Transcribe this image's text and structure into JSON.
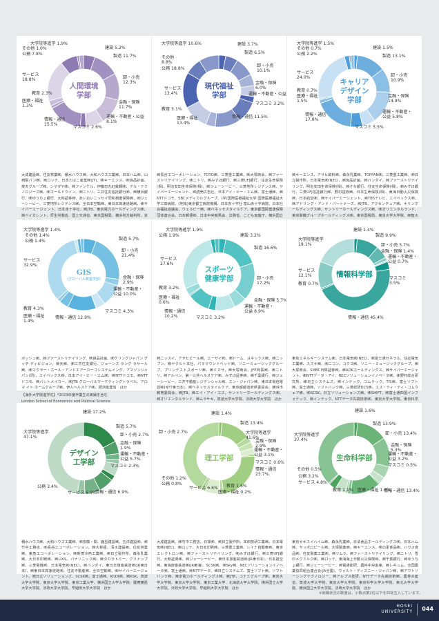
{
  "cards": [
    {
      "name": "人間環境\n学部",
      "sub": "",
      "color": "#8e7bb3",
      "labels": [
        "大学院等進学 1.9%",
        "その他 1.0%",
        "公務 7.8%",
        "建設 5.2%",
        "製造 11.7%",
        "サービス\n18.8%",
        "卸・小売\n12.3%",
        "教育 2.3%",
        "医療・福祉\n1.3%",
        "金融・保険\n11.7%",
        "運輸・不動産・公益\n8.1%",
        "情報・通信\n15.5%",
        "マスコミ 2.6%"
      ],
      "companies": "大成建設㈱、住友林業㈱、積水ハウス㈱、大和ハウス工業㈱、日本ハム㈱、山崎製パン㈱、㈱ロッテ、日本たばこ産業㈱(JT)、㈱キーエンス、㈱良品計画、楽天グループ㈱、シマダヤ㈱、㈱ファンケル、伊藤忠丸紅鉄鋼㈱、デル・テクノロジーズ㈱、㈱ゴールドウイン、㈱ニトリ、三井住友信託銀行㈱、㈱横浜銀行、㈱ゆうちょ銀行、大和証券㈱、あいおいニッセイ同和損害保険㈱、㈱ジェーシービー、三菱地所レジデンス㈱、全日本空輸㈱、東日本高速道路㈱、㈱サイバーエージェント、日本赤十字社、㈱JTB、東京電力ホールディングス㈱、㈱ベイカレント、厚生労働省、国土交通省、東京国税局、横浜地方裁判所、京都大学大学院、中央大学大学院、法政大学大学院　ほか",
      "extra": ""
    },
    {
      "name": "現代福祉\n学部",
      "sub": "",
      "color": "#4b63b0",
      "labels": [
        "大学院等進学 10.6%",
        "建設 3.7%",
        "その他\n8.8%",
        "製造 6.5%",
        "公務 18.8%",
        "卸・小売\n10.1%",
        "サービス\n13.4%",
        "金融・保険\n6.0%",
        "運輸・不動産・公益 6.0%",
        "教育 5.1%",
        "マスコミ 3.2%",
        "医療・福祉\n13.4%",
        "情報・通信 11.5%"
      ],
      "companies": "㈱長谷工コーポレーション、TOTO㈱、三菱重工業㈱、㈱大塚商会、㈱ファーストリテイリング、㈱ニトリ、㈱みずほ銀行、㈱三菱UFJ銀行、住友生命保険(相)、明治安田生命保険(相)、㈱ジェーシービー、三菱地所レジデンス㈱、サイバーエージェント、㈱読売広告社、日本アイ・ビー・エム㈱、富士通㈱、㈱NTTドコモ、SBCメディカルグループ、(学)国際医療福祉大学 国際医療福祉大学三田病院、(地独)東京都立病院機構、日本赤十字社 富山赤十字病院、日本社会福祉協議会、ウェルビー㈱、㈱ベネッセスタイルケア、東京都国民健康保険団体連合会、日本郵便㈱、日本中央競馬会、法務省、こども家庭庁、横浜国立大学大学院、上智大学大学院、法政大学大学院　ほか",
      "extra": ""
    },
    {
      "name": "キャリア\nデザイン\n学部",
      "sub": "",
      "color": "#4f9ed9",
      "labels": [
        "大学院等進学 1.5%",
        "その他 0.7%",
        "公務 2.2%",
        "建設 1.5%",
        "製造 13.1%",
        "サービス\n24.0%",
        "卸・小売\n10.9%",
        "教育 0.7%",
        "医療・福祉\n1.5%",
        "金融・保険\n14.9%",
        "運輸・不動産・\n公益 5.8%",
        "情報・通信\n17.8%",
        "マスコミ 5.5%"
      ],
      "companies": "㈱キーエンス、アサヒ飲料㈱、森永乳業㈱、TOPPAN㈱、三菱重工業㈱、㈱日立製作所、日本電気㈱(NEC)、㈱良品計画、㈱バンダイ、㈱ファーストリテイリング、明治安田生命保険(相)、㈱そな銀行、住友生命保険(相)、㈱みずほ銀行、三菱UFJ信託銀行㈱、野村證券㈱、日本生命保険(相)、東海日動火災保険㈱、日本航空㈱、㈱サイバーエージェント、㈱TBSテレビ、エイベックス㈱、㈱アドリング・アンド・パートナーズ、㈱JTB、アクセンチュア㈱、キリンホールディングス㈱、サントリーホールディングス㈱、㈱オリエンタルランド、東京製鐵グループホールディングス㈱、東京国税局、東京大学大学院、㈱智大学大学院、北海道大学大学院、明治大学大学院　ほか",
      "extra": ""
    },
    {
      "name": "GIS",
      "sub": "(グローバル教養学部)",
      "color": "#5ab3df",
      "labels": [
        "大学院等進学 1.4%",
        "その他 1.4%",
        "公務 1.4%",
        "製造 5.7%",
        "卸・小売\n21.4%",
        "サービス\n32.9%",
        "金融・保険\n2.9%",
        "運輸・不動産・\n公益 10.0%",
        "教育 4.3%",
        "医療・福祉\n1.4%",
        "マスコミ 4.3%",
        "情報・通信 12.9%"
      ],
      "companies": "ボッシュ㈱、㈱ファーストリテイリング、㈱良品計画、㈱ケリングジャパン グッチ ディビジョン、楽天㈱、㈱三井住友銀行、ジョーンズ ラング ラサール㈱、㈱マクラー・ホール・アンドエアーカーゴシステムイング、アマゾンジャパン(同)、エイベックス㈱、日本アイ・ビー・エム㈱、㈱NTTドコモ、㈱NTTドコモ、㈱バレトメイカー、㈱JTB グローバルマーケティングトラベル、アロマ イト ホームグループ㈱、伊人ヘルスケア㈱、経済産業省　ほか",
      "extra": "【海外大学院進学先】*2023年度卒業生の実績を含む\nLondon School of Economics and Political Science\nImperial College London　ほか\n※その他の合格先の詳細は学部ウェブサイトにてご確認ください。\n※海外大学院進学については円グラフには含まれません。"
    },
    {
      "name": "スポーツ\n健康学部",
      "sub": "",
      "color": "#2fb5b5",
      "labels": [
        "大学院等進学 1.9%",
        "公務 1.9%",
        "建設 3.2%",
        "製造 16.6%",
        "サービス\n27.6%",
        "卸・小売\n17.2%",
        "教育 3.2%",
        "医療・福祉\n0.6%",
        "金融・保険 5.7%",
        "運輸・不動産・\n公益 8.9%",
        "情報・通信\n10.2%",
        "マスコミ 3.2%"
      ],
      "companies": "㈱ニッスイ、アサヒビール㈱、エーザイ㈱、㈱ドーム、ヨネックス㈱、㈱ニップン、㈱ヤクルト本社、パラマウントベッド㈱、ソニーミュージックグループ、プリンテストスポーツ㈱、㈱ミカサ、㈱大塚商会、JFE商事㈱、㈱ニトリ、㈱アルペン、第一三共ヘルスケア㈱、みずほ証券㈱、㈱千葉銀行、㈱ジェーシービー、三井不動産レジデンシャル㈱、エン・ジャパン㈱、東日本電信電話㈱(NTT東日本)、㈱ベネッセスタイルケア、東京都都道府県委員会、横浜市教育委員会、㈱JTB、㈱エイ・アイ・エス、サントリーホールディングス㈱、㈱オリエンタルランド、㈱ムラサキ、筑波大学大学院、法政大学大学院　ほか",
      "extra": ""
    },
    {
      "name": "情報科学部",
      "sub": "",
      "color": "#10958a",
      "labels": [
        "建設 1.4%",
        "大学院等進学\n19.1%",
        "製造 9.9%",
        "卸・小売 5.7%",
        "金融・保険 1.4%",
        "運輸・不動産・\n公益 0.7%",
        "サービス\n12.1%",
        "マスコミ\n3.5%",
        "教育 0.7%",
        "情報・通信 45.4%"
      ],
      "companies": "東京エネルギーシステム㈱、日本電気㈱(NEC)、㈱富士通ゼネラル、住友電気工業㈱、スズキ㈱、㈱ニコン、コクヨ㈱、ソニー・ミュージックグループ、㈱大塚商会、SMBC日興証券㈱、㈱ADKホールディングス、㈱サイバーエージェント、㈱NTTデータ・アイ、NECソリューションイノベータ㈱、㈱野村総合研究所、㈱日立システムズ、㈱インテック、コムテック、TIS㈱、富士ソフト㈱、富士通㈱、ソフトバンク㈱、三菱総研DCS㈱、エス・ティ・ティ・コムウェア㈱、㈱SCSK、日立ソリューションズ㈱、㈱SHIFT、㈱富士通四国インフォテック、㈱インテック、NTTデータ先端技術㈱、東京大学大学院、東京科学大学大学院、法政大学大学院　ほか",
      "extra": ""
    },
    {
      "name": "デザイン\n工学部",
      "sub": "",
      "color": "#2e8a4b",
      "labels": [
        "建設 17.2%",
        "製造 5.7%",
        "大学院等進学\n47.1%",
        "卸・小売 2.7%",
        "金融・保険\n1.9%",
        "運輸・不動産・\n公益 5.7%",
        "マスコミ 2.3%",
        "公務 3.4%",
        "情報・通信 6.9%",
        "サービス 6.9%"
      ],
      "companies": "積水ハウス㈱、大和ハウス工業㈱、㈱安藤・間、鹿島建設㈱、五洋建設㈱、㈱竹中工務店、㈱長谷工コーポレーション、㈱大林組、清水建設㈱、住友林業㈱、東急工コーポレーション、㈱新菱冷熱工業㈱、㈱日立製作所、森永乳業㈱、大日本印刷㈱、㈱LIXIL、パナソニック㈱、㈱タカラトミー、グリナップ㈱、三菱電機㈱、日本電気㈱(NEC)、㈱バンダイ、東日本旅客鉄道㈱(JR東日本)、㈱東日本高速道路㈱、住友不動産㈱、全日空輸㈱、㈱サイバーエージェント、㈱日立ソリューションズ、SCSK㈱、富士通㈱、KDDI㈱、㈱KSK、筑波大学大学院、東京大学大学院、東京工業大学、横浜国立大学大学院、慶應義塾大学大学院、法政大学大学院、早稲田大学大学院　ほか",
      "extra": ""
    },
    {
      "name": "理工学部",
      "sub": "",
      "color": "#8dc56a",
      "labels": [
        "建設 1.4%",
        "製造 13.4%",
        "卸・小売 2.7%",
        "大学院等進学\n41.6%",
        "金融・保険\n2.9%",
        "運輸・不動産・\n公益 3.1%",
        "マスコミ 0.6%",
        "情報・通信\n23.7%",
        "その他 1.2%",
        "公務 0.8%",
        "サービス 6.6%",
        "医療・福祉 0.2%",
        "教育 1.6%"
      ],
      "companies": "大成建設㈱、㈱竹中工務店、日揮㈱、㈱日立製作所、本田技研工業㈱、日本電気㈱(NEC)、㈱ロッテ、大日本印刷㈱、三菱重工業㈱、レイナ自動車㈱、東京エレクトロン㈱、㈱ファーストリテイリング、㈱みずほ銀行、㈱三菱UFJ銀行、大和証券㈱、㈱ジェーシービー、東日本旅客鉄道㈱(JR東日本)、日本航空㈱、東海旅客鉄道㈱(JR東海)、SCSK㈱、㈱Sky㈱、NECソリューションイノベータ㈱、富士通㈱、㈱NTTデータ、㈱日立システムズ、富士ソフト㈱、ソフトバンク㈱、東京電力ホールディングス㈱、㈱JTB、コナミグループ㈱、東京大学大学院、東京大学大学院、東京工業大学、北海道大学大学院、横浜国立大学大学院、法政大学大学院、早稲田大学大学院　ほか",
      "extra": ""
    },
    {
      "name": "生命科学部",
      "sub": "",
      "color": "#4ba55c",
      "labels": [
        "建設 1.6%",
        "製造 13.9%",
        "大学院等進学\n37.4%",
        "卸・小売 13.4%",
        "金融・保険\n5.3%",
        "運輸・不動産・\n公益 3.2%",
        "マスコミ 0.5%",
        "その他 0.5%",
        "公務 3.2%",
        "サービス 4.8%",
        "情報・通信 13.4%",
        "教育 1.1%",
        "医療・福祉 1.6%"
      ],
      "companies": "東京セキスイハイム㈱、森永乳業㈱、日清食品ホールディングス㈱、日本ハム㈱、サッポロビール㈱、大塚製薬㈱、㈱キーエンス、味の素食品㈱、ハウス食品㈱、住友製薬工業㈱、㈱ツムラ、㈱ファーストリテイリング、㈱ニトリ、雪印メグミルク㈱、㈱ロッテ、東海海上日動火災保険㈱、㈱千葉銀行、㈱ゆうちょ銀行、㈱ジェーシービー、㈱電通総研、農林中央金庫、㈱レギュム、全国農業協同組合連合会(JA全農)、ウォルト・ディズニー・ジャパン㈱、㈱アウトソーシングテクノロジー、㈱アルプス技研、NTTデータ先端技術㈱、農林水産省、筑波大学大学院、東京大学大学院、東京科学大学大学院、東北大学大学院、横浜国立大学大学院、法政大学大学院　ほか",
      "extra": ""
    }
  ],
  "footer": {
    "note": "※就職状況の数値は、小数点第2位以下を四捨五入しています。",
    "logo": "HOSEI\nUNIVERSITY",
    "page": "044"
  }
}
